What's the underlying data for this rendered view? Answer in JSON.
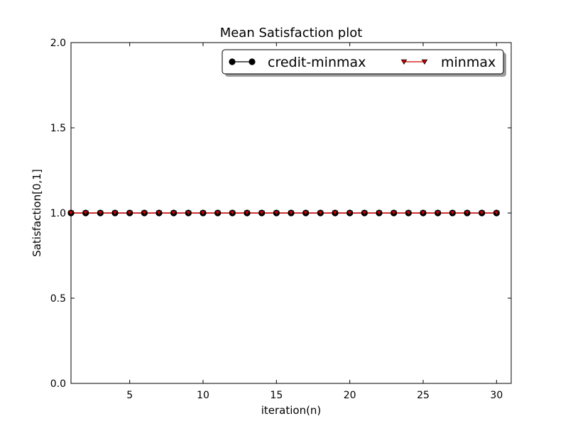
{
  "chart_data": {
    "type": "line",
    "title": "Mean Satisfaction plot",
    "xlabel": "iteration(n)",
    "ylabel": "Satisfaction[0,1]",
    "xlim": [
      1,
      31
    ],
    "ylim": [
      0.0,
      2.0
    ],
    "xticks": [
      5,
      10,
      15,
      20,
      25,
      30
    ],
    "xtick_labels": [
      "5",
      "10",
      "15",
      "20",
      "25",
      "30"
    ],
    "yticks": [
      0.0,
      0.5,
      1.0,
      1.5,
      2.0
    ],
    "ytick_labels": [
      "0.0",
      "0.5",
      "1.0",
      "1.5",
      "2.0"
    ],
    "grid": false,
    "legend_position": "top-right",
    "x": [
      1,
      2,
      3,
      4,
      5,
      6,
      7,
      8,
      9,
      10,
      11,
      12,
      13,
      14,
      15,
      16,
      17,
      18,
      19,
      20,
      21,
      22,
      23,
      24,
      25,
      26,
      27,
      28,
      29,
      30
    ],
    "series": [
      {
        "name": "credit-minmax",
        "color": "#000000",
        "marker": "circle",
        "values": [
          1,
          1,
          1,
          1,
          1,
          1,
          1,
          1,
          1,
          1,
          1,
          1,
          1,
          1,
          1,
          1,
          1,
          1,
          1,
          1,
          1,
          1,
          1,
          1,
          1,
          1,
          1,
          1,
          1,
          1
        ]
      },
      {
        "name": "minmax",
        "color": "#d40000",
        "marker": "triangle-down",
        "values": [
          1,
          1,
          1,
          1,
          1,
          1,
          1,
          1,
          1,
          1,
          1,
          1,
          1,
          1,
          1,
          1,
          1,
          1,
          1,
          1,
          1,
          1,
          1,
          1,
          1,
          1,
          1,
          1,
          1,
          1
        ]
      }
    ]
  }
}
